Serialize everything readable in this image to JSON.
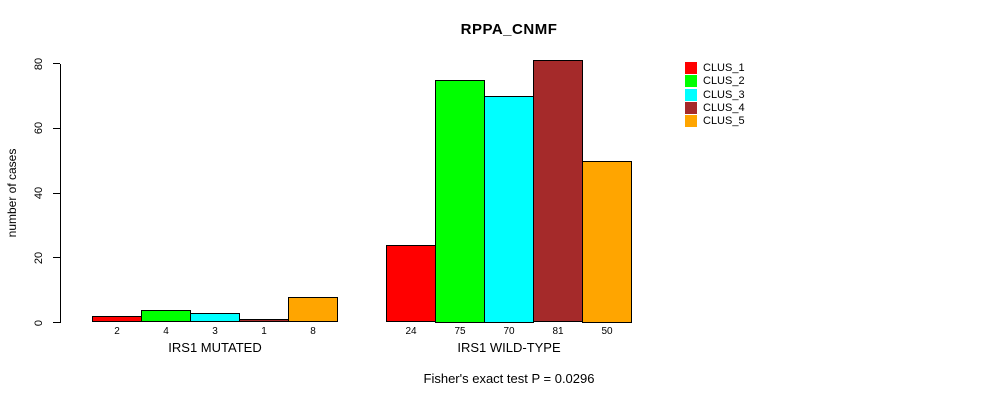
{
  "title": "RPPA_CNMF",
  "chart_data": {
    "type": "bar",
    "title": "RPPA_CNMF",
    "ylabel": "number of cases",
    "xlabel": "",
    "ylim": [
      0,
      80
    ],
    "yticks": [
      0,
      20,
      40,
      60,
      80
    ],
    "grid": false,
    "legend_position": "right",
    "categories": [
      "IRS1 MUTATED",
      "IRS1 WILD-TYPE"
    ],
    "series": [
      {
        "name": "CLUS_1",
        "color": "#FF0000",
        "values": [
          2,
          24
        ]
      },
      {
        "name": "CLUS_2",
        "color": "#00FF00",
        "values": [
          4,
          75
        ]
      },
      {
        "name": "CLUS_3",
        "color": "#00FFFF",
        "values": [
          3,
          70
        ]
      },
      {
        "name": "CLUS_4",
        "color": "#A52A2A",
        "values": [
          1,
          81
        ]
      },
      {
        "name": "CLUS_5",
        "color": "#FFA500",
        "values": [
          8,
          50
        ]
      }
    ],
    "bar_value_labels": [
      [
        "2",
        "4",
        "3",
        "1",
        "8"
      ],
      [
        "24",
        "75",
        "70",
        "81",
        "50"
      ]
    ],
    "annotation": "Fisher's exact test P = 0.0296"
  }
}
